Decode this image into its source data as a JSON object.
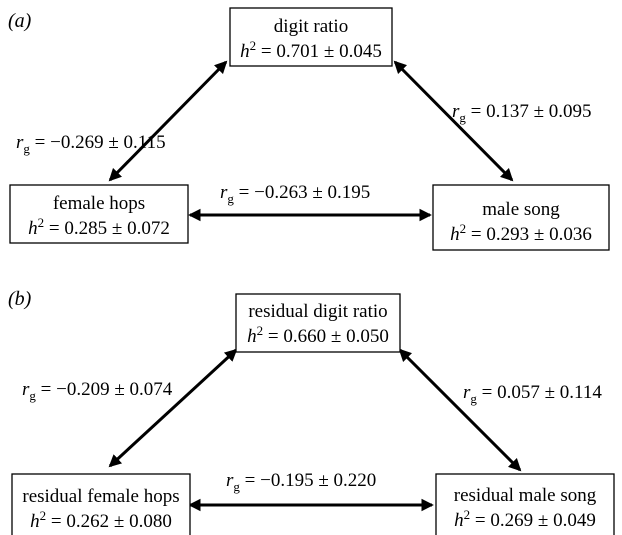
{
  "panels": [
    {
      "label": "a",
      "nodes": {
        "top": {
          "name": "digit ratio",
          "h2_value": "0.701 ± 0.045"
        },
        "left": {
          "name": "female hops",
          "h2_value": "0.285 ± 0.072"
        },
        "right": {
          "name": "male song",
          "h2_value": "0.293 ± 0.036"
        }
      },
      "edges": {
        "top_left": "−0.269 ± 0.115",
        "top_right": "0.137 ± 0.095",
        "left_right": "−0.263 ± 0.195"
      }
    },
    {
      "label": "b",
      "nodes": {
        "top": {
          "name": "residual digit ratio",
          "h2_value": "0.660 ± 0.050"
        },
        "left": {
          "name": "residual female hops",
          "h2_value": "0.262 ± 0.080"
        },
        "right": {
          "name": "residual male song",
          "h2_value": "0.269 ± 0.049"
        }
      },
      "edges": {
        "top_left": "−0.209 ± 0.074",
        "top_right": "0.057 ± 0.114",
        "left_right": "−0.195 ± 0.220"
      }
    }
  ],
  "symbols": {
    "heritability_base": "h",
    "heritability_exponent": "2",
    "correlation_base": "r",
    "correlation_subscript": "g",
    "equals": " = ",
    "paren_open": "(",
    "paren_close": ")"
  }
}
